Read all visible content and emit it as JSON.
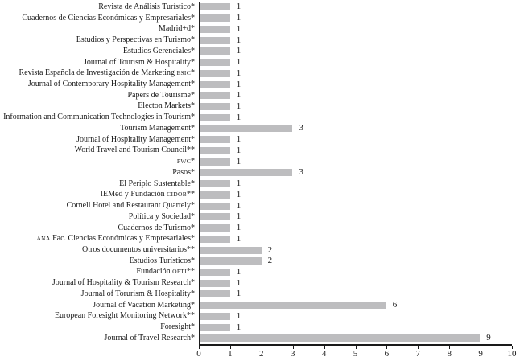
{
  "chart_data": {
    "type": "bar",
    "orientation": "horizontal",
    "title": "",
    "xlabel": "",
    "ylabel": "",
    "xlim": [
      0,
      10
    ],
    "x_ticks": [
      0,
      1,
      2,
      3,
      4,
      5,
      6,
      7,
      8,
      9,
      10
    ],
    "grid": false,
    "legend": false,
    "value_labels_shown": true,
    "bar_color": "#bdbdbf",
    "axis_color": "#1a1a1a",
    "smallcaps_tokens": [
      "ESIC",
      "PWC",
      "CIDOB",
      "ANA",
      "OPTI"
    ],
    "categories": [
      "Revista de Análisis Turístico*",
      "Cuadernos de Ciencias Económicas y Empresariales*",
      "Madrid+d*",
      "Estudios y Perspectivas en Turismo*",
      "Estudios Gerenciales*",
      "Journal of Tourism & Hospitality*",
      "Revista Española de Investigación de Marketing ESIC*",
      "Journal of Contemporary Hospitality Management*",
      "Papers de Tourisme*",
      "Electon Markets*",
      "Information and Communication Technologies in Tourism*",
      "Tourism Management*",
      "Journal of Hospitality Management*",
      "World Travel and Tourism Council**",
      "PWC*",
      "Pasos*",
      "El Periplo Sustentable*",
      "IEMed y Fundación CIDOB**",
      "Cornell Hotel and Restaurant Quartely*",
      "Política y Sociedad*",
      "Cuadernos de Turismo*",
      "ANA Fac. Ciencias Económicas y Empresariales*",
      "Otros documentos universitarios**",
      "Estudios Turísticos*",
      "Fundación OPTI**",
      "Journal of Hospitality & Tourism Research*",
      "Journal of Torurism & Hospitality*",
      "Journal of Vacation Marketing*",
      "European Foresight Monitoring Network**",
      "Foresight*",
      "Journal of Travel Research*"
    ],
    "values": [
      1,
      1,
      1,
      1,
      1,
      1,
      1,
      1,
      1,
      1,
      1,
      3,
      1,
      1,
      1,
      3,
      1,
      1,
      1,
      1,
      1,
      1,
      2,
      2,
      1,
      1,
      1,
      6,
      1,
      1,
      9
    ]
  }
}
